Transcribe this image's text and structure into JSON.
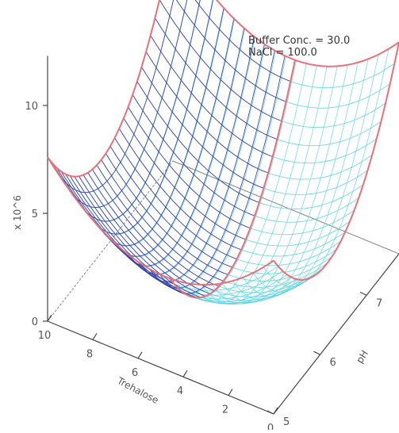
{
  "chart_data": {
    "type": "surface",
    "annotation": [
      "Buffer Conc. = 30.0",
      "NaCl = 100.0"
    ],
    "zlabel": "x 10^6",
    "xlabel": "Trehalose",
    "ylabel": "pH",
    "zticks": [
      "0",
      "5",
      "10"
    ],
    "xticks": [
      "10",
      "8",
      "6",
      "4",
      "2",
      "0"
    ],
    "yticks": [
      "5",
      "6",
      "7"
    ],
    "xlim": [
      0,
      10
    ],
    "ylim": [
      5,
      7.7
    ],
    "zlim": [
      0,
      12
    ],
    "model": "z = 1.3 + 0.04*(T-5)^2*... (quadratic bowl)",
    "colors": {
      "front_mesh": "#3a3fa8",
      "back_mesh": "#5fd4e0",
      "edge": "#e8707a",
      "axis": "#444444"
    }
  }
}
